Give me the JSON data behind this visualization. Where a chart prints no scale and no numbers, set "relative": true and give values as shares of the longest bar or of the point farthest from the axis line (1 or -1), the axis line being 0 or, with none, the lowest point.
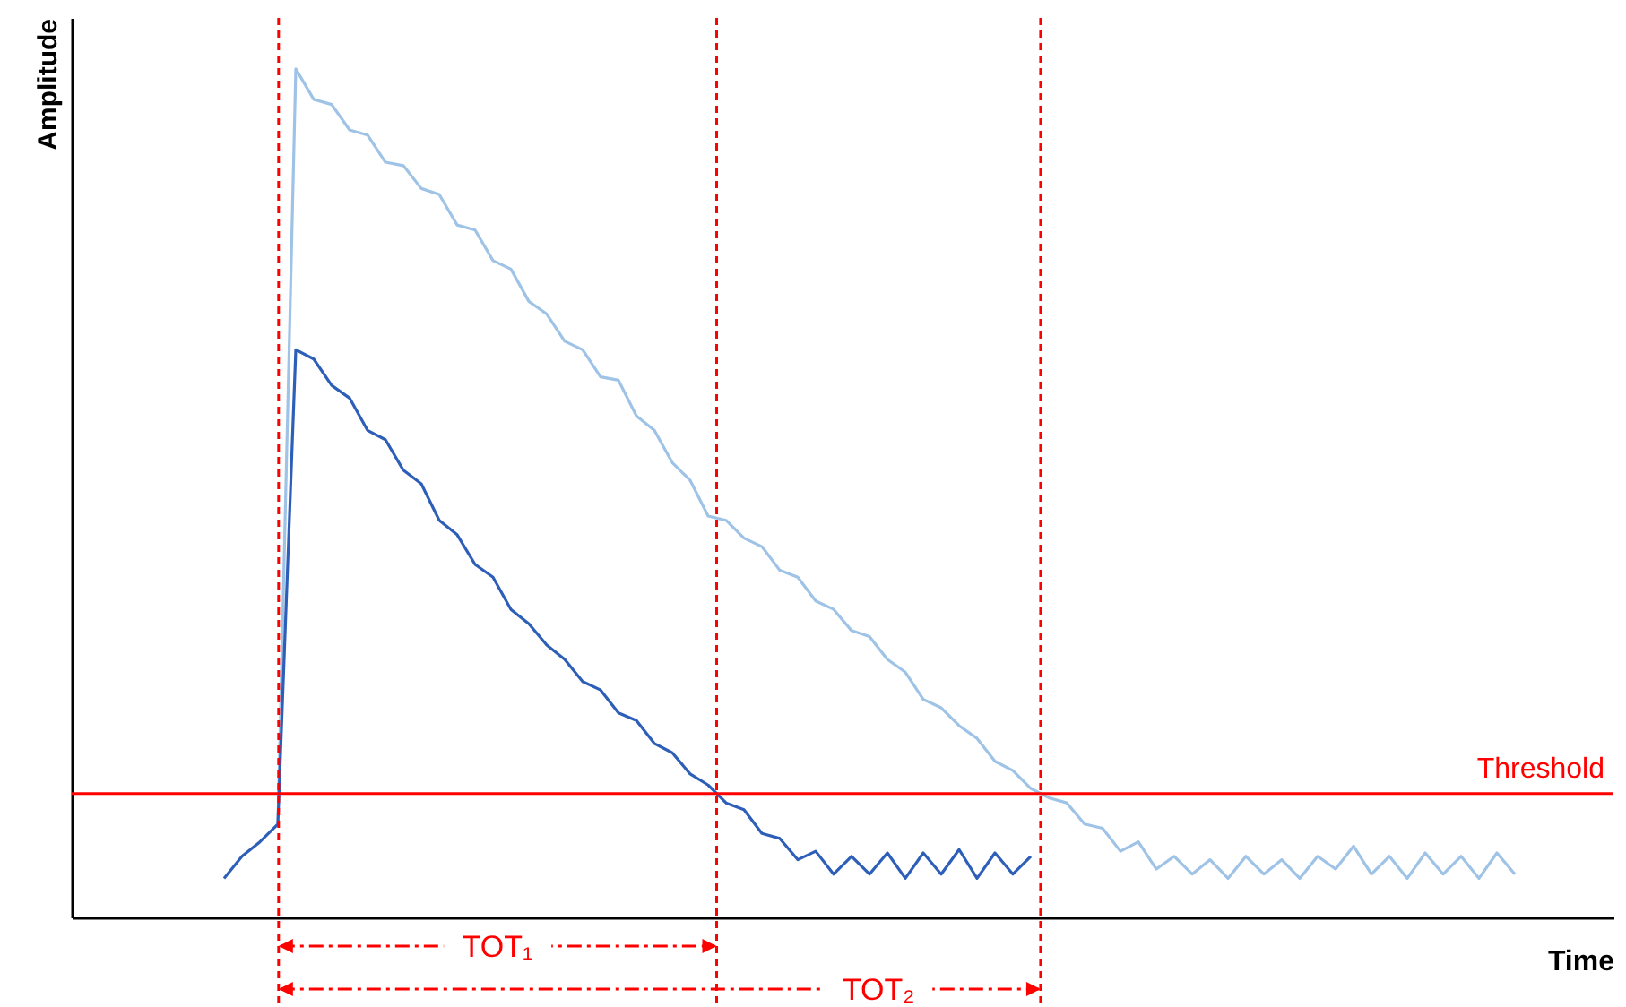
{
  "chart_data": {
    "type": "line",
    "relative": true,
    "xlabel": "Time",
    "ylabel": "Amplitude",
    "categories": [
      null,
      null,
      null,
      null,
      null,
      null,
      null,
      null,
      null,
      null,
      null,
      null,
      null,
      null,
      null,
      null,
      null,
      null,
      null,
      null,
      null,
      null,
      null,
      null,
      null,
      null,
      null,
      null,
      null,
      null,
      null,
      null,
      null,
      null,
      null,
      null,
      null,
      null,
      null,
      null,
      null,
      null,
      null,
      null,
      null,
      null,
      null,
      null,
      null,
      null,
      null,
      null,
      null,
      null,
      null,
      null,
      null,
      null,
      null,
      null,
      null,
      null,
      null,
      null,
      null,
      null,
      null,
      null,
      null,
      null,
      null,
      null,
      null,
      null,
      null,
      null,
      null,
      null,
      null,
      null,
      null,
      null,
      null,
      null,
      null,
      null
    ],
    "series": [
      {
        "color": "#9ec3e6",
        "values": [
          null,
          null,
          null,
          null,
          null,
          null,
          null,
          null,
          null,
          null,
          null,
          0.11,
          1.0,
          0.964,
          0.958,
          0.928,
          0.922,
          0.89,
          0.886,
          0.859,
          0.852,
          0.816,
          0.81,
          0.774,
          0.764,
          0.726,
          0.711,
          0.679,
          0.669,
          0.637,
          0.633,
          0.591,
          0.574,
          0.536,
          0.515,
          0.473,
          0.468,
          0.447,
          0.437,
          0.409,
          0.401,
          0.373,
          0.363,
          0.338,
          0.331,
          0.304,
          0.289,
          0.257,
          0.247,
          0.226,
          0.211,
          0.184,
          0.173,
          0.152,
          0.141,
          0.135,
          0.11,
          0.105,
          0.078,
          0.089,
          0.057,
          0.072,
          0.051,
          0.068,
          0.046,
          0.072,
          0.051,
          0.068,
          0.046,
          0.072,
          0.057,
          0.084,
          0.051,
          0.072,
          0.046,
          0.076,
          0.051,
          0.072,
          0.046,
          0.076,
          0.051,
          null,
          null,
          null,
          null,
          null
        ]
      },
      {
        "color": "#2e5fb8",
        "values": [
          null,
          null,
          null,
          null,
          null,
          null,
          null,
          null,
          0.046,
          0.072,
          0.089,
          0.11,
          0.669,
          0.658,
          0.627,
          0.612,
          0.574,
          0.563,
          0.527,
          0.511,
          0.468,
          0.451,
          0.416,
          0.401,
          0.363,
          0.346,
          0.321,
          0.304,
          0.278,
          0.268,
          0.241,
          0.232,
          0.205,
          0.194,
          0.169,
          0.156,
          0.135,
          0.127,
          0.099,
          0.093,
          0.068,
          0.078,
          0.051,
          0.072,
          0.051,
          0.076,
          0.046,
          0.076,
          0.051,
          0.08,
          0.046,
          0.076,
          0.051,
          0.072,
          null,
          null,
          null,
          null,
          null,
          null,
          null,
          null,
          null,
          null,
          null,
          null,
          null,
          null,
          null,
          null,
          null,
          null,
          null,
          null,
          null,
          null,
          null,
          null,
          null,
          null,
          null,
          null,
          null,
          null,
          null,
          null
        ]
      }
    ],
    "ref_lines": [
      {
        "axis": "y",
        "value": 0.146,
        "label": "Threshold",
        "color": "#ff0000"
      }
    ],
    "annotations": [
      "TOT₁",
      "TOT₂"
    ]
  }
}
